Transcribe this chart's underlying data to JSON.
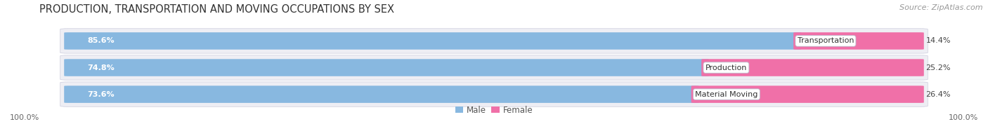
{
  "title": "PRODUCTION, TRANSPORTATION AND MOVING OCCUPATIONS BY SEX",
  "source": "Source: ZipAtlas.com",
  "categories": [
    "Transportation",
    "Production",
    "Material Moving"
  ],
  "male_pcts": [
    85.6,
    74.8,
    73.6
  ],
  "female_pcts": [
    14.4,
    25.2,
    26.4
  ],
  "male_color": "#88b8e0",
  "female_color": "#f070a8",
  "row_bg_color": "#eeeef4",
  "male_label": "Male",
  "female_label": "Female",
  "left_axis_label": "100.0%",
  "right_axis_label": "100.0%",
  "title_fontsize": 10.5,
  "source_fontsize": 8,
  "bar_label_fontsize": 8,
  "cat_label_fontsize": 8,
  "legend_fontsize": 8.5,
  "axis_label_fontsize": 8
}
